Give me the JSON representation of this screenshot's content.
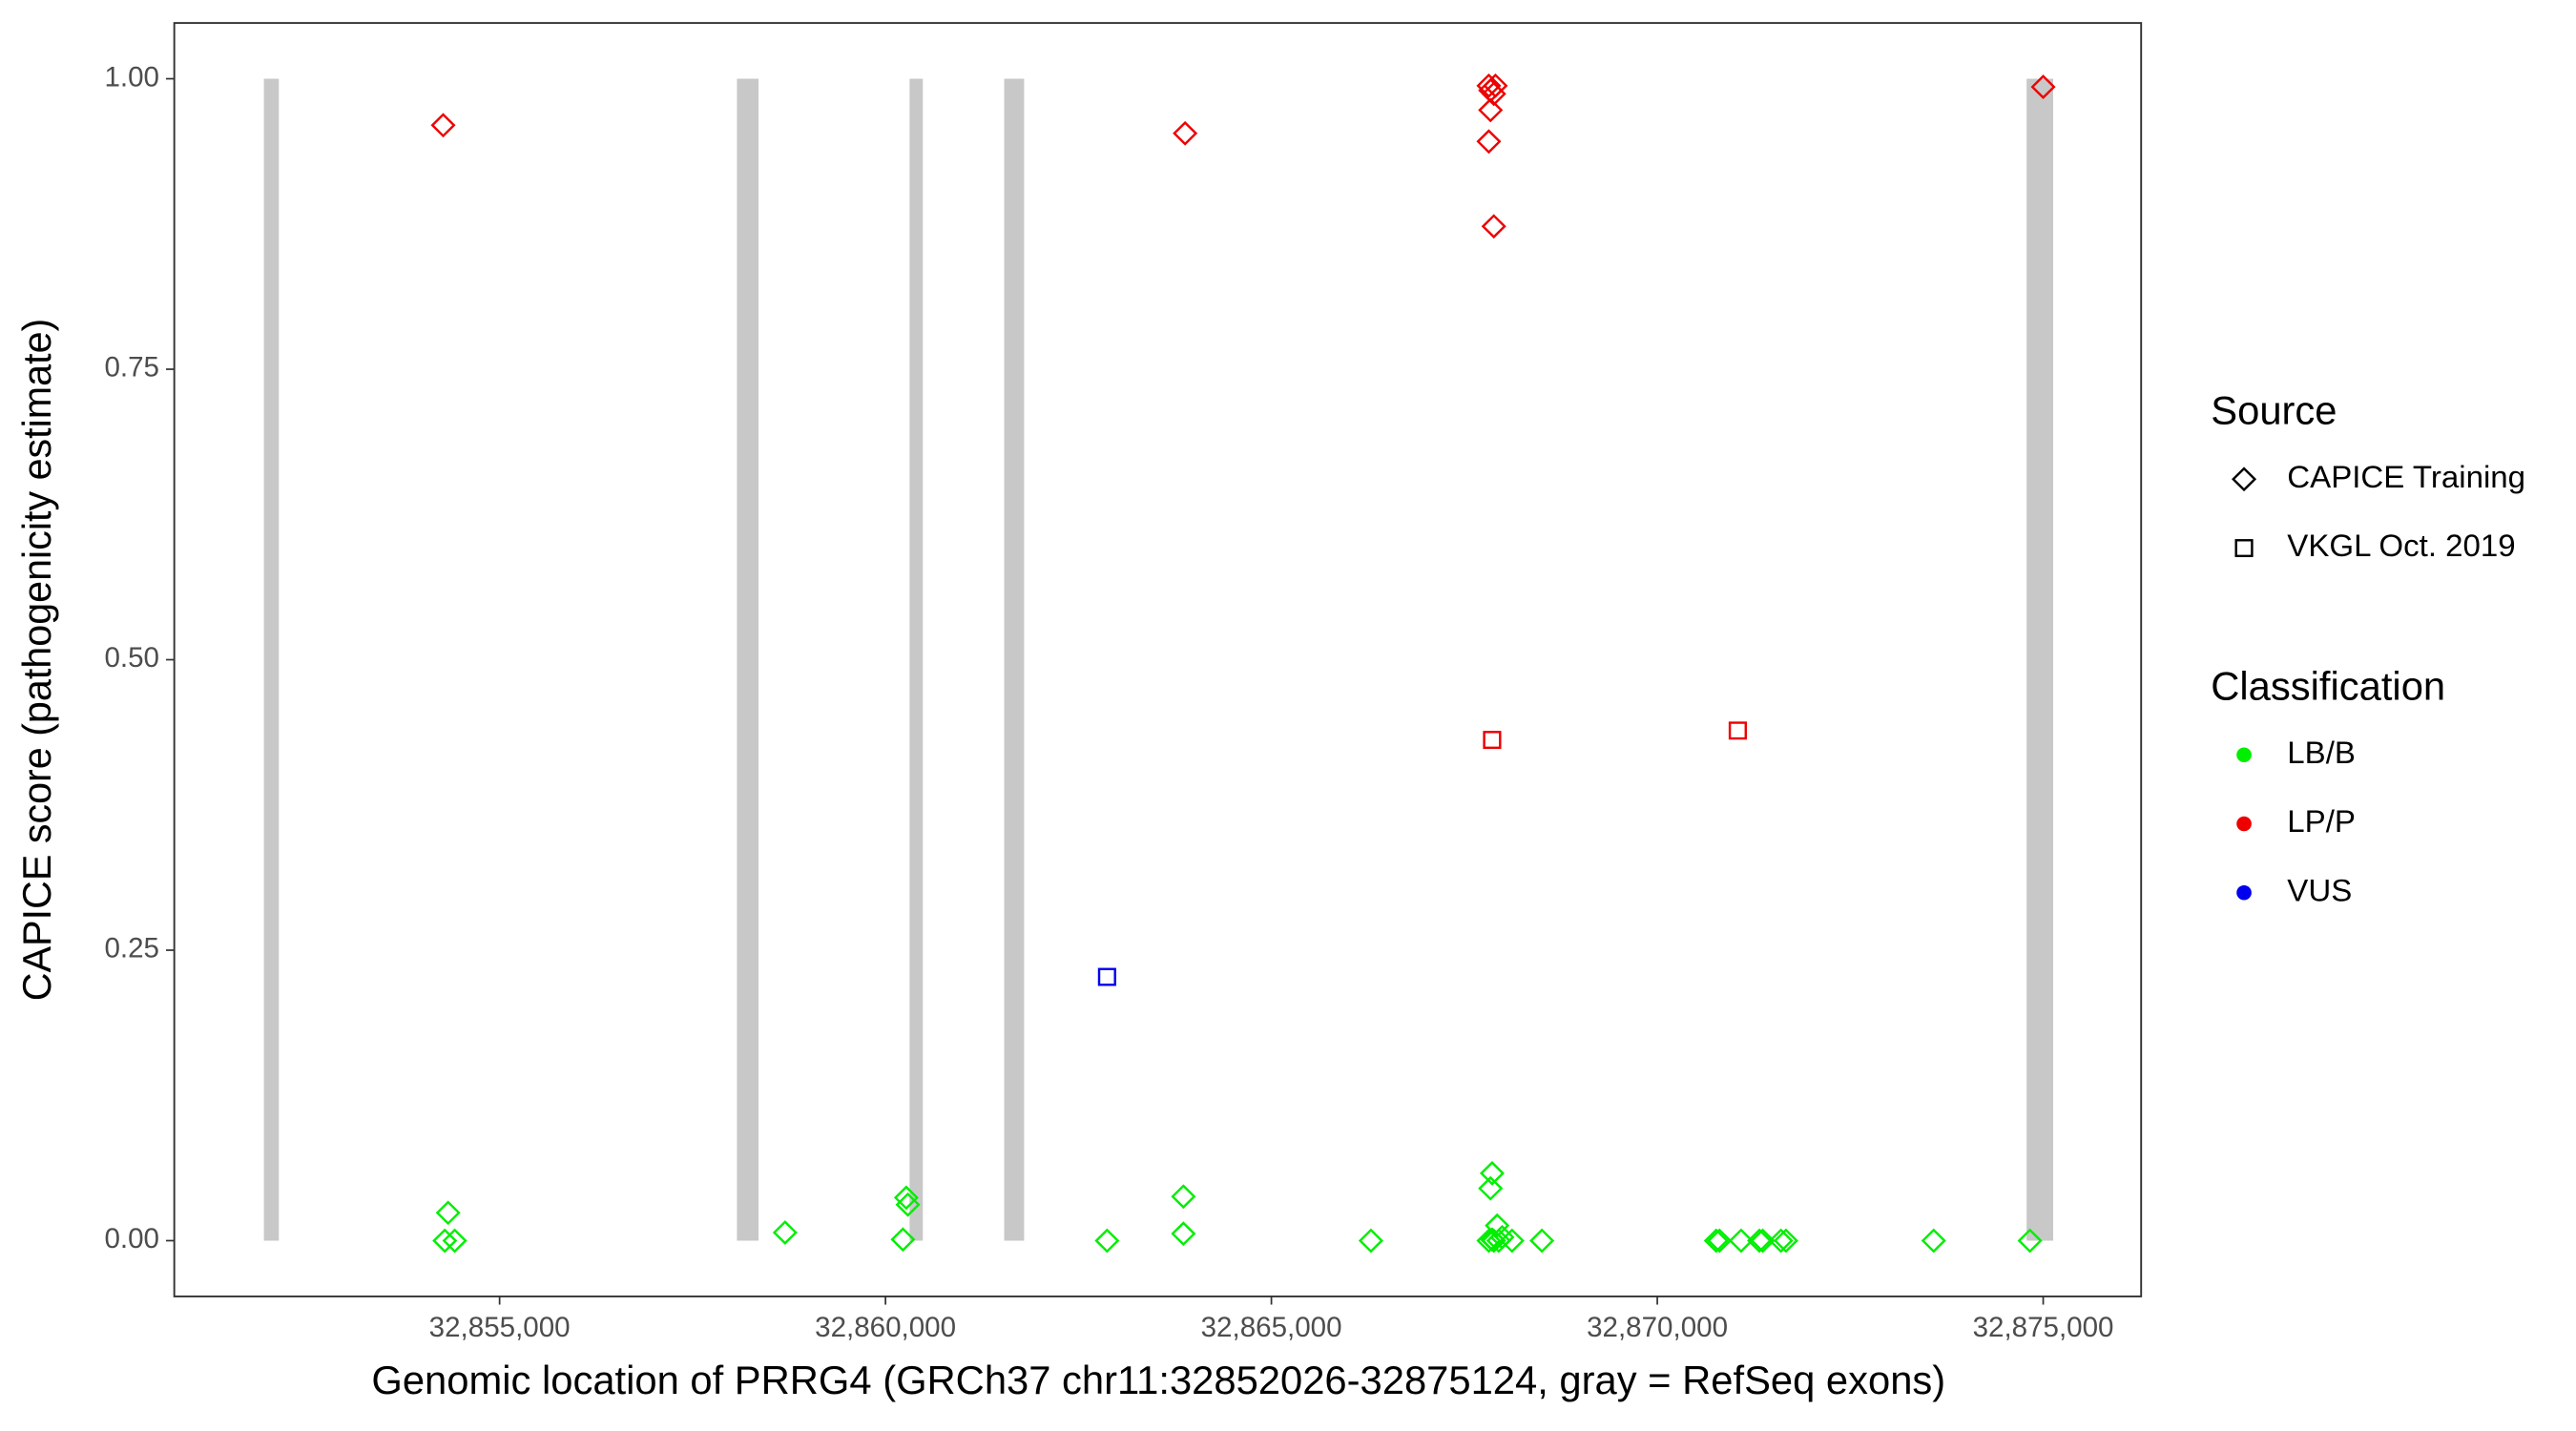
{
  "chart_data": {
    "type": "scatter",
    "x_label": "Genomic location of PRRG4 (GRCh37 chr11:32852026-32875124, gray = RefSeq exons)",
    "y_label": "CAPICE score (pathogenicity estimate)",
    "xlim": [
      32850785,
      32876269
    ],
    "ylim": [
      -0.048,
      1.048
    ],
    "xticks": [
      {
        "value": 32855000,
        "label": "32,855,000"
      },
      {
        "value": 32860000,
        "label": "32,860,000"
      },
      {
        "value": 32865000,
        "label": "32,865,000"
      },
      {
        "value": 32870000,
        "label": "32,870,000"
      },
      {
        "value": 32875000,
        "label": "32,875,000"
      }
    ],
    "yticks": [
      {
        "value": 0,
        "label": "0.00"
      },
      {
        "value": 0.25,
        "label": "0.25"
      },
      {
        "value": 0.5,
        "label": "0.50"
      },
      {
        "value": 0.75,
        "label": "0.75"
      },
      {
        "value": 1,
        "label": "1.00"
      }
    ],
    "exon_color": "#c8c8c8",
    "exons": [
      {
        "start": 32851946,
        "end": 32852140
      },
      {
        "start": 32858075,
        "end": 32858355
      },
      {
        "start": 32860312,
        "end": 32860484
      },
      {
        "start": 32861538,
        "end": 32861796
      },
      {
        "start": 32874785,
        "end": 32875129
      }
    ],
    "source_legend": {
      "title": "Source",
      "items": [
        {
          "name": "CAPICE Training",
          "shape": "diamond"
        },
        {
          "name": "VKGL Oct. 2019",
          "shape": "square"
        }
      ]
    },
    "class_legend": {
      "title": "Classification",
      "items": [
        {
          "name": "LB/B",
          "color": "#00ee00"
        },
        {
          "name": "LP/P",
          "color": "#ee0000"
        },
        {
          "name": "VUS",
          "color": "#0000ee"
        }
      ]
    },
    "series": [
      {
        "shape": "diamond",
        "color": "#ee0000",
        "x": [
          32854269,
          32863882,
          32867817,
          32867839,
          32867882,
          32867903,
          32867839,
          32867817,
          32867882,
          32875000
        ],
        "values": [
          0.96,
          0.953,
          0.994,
          0.99,
          0.987,
          0.994,
          0.973,
          0.946,
          0.873,
          0.993
        ]
      },
      {
        "shape": "square",
        "color": "#ee0000",
        "x": [
          32867860,
          32871043
        ],
        "values": [
          0.431,
          0.439
        ]
      },
      {
        "shape": "square",
        "color": "#0000ee",
        "x": [
          32862871
        ],
        "values": [
          0.227
        ]
      },
      {
        "shape": "diamond",
        "color": "#00ee00",
        "x": [
          32854333,
          32854290,
          32854419,
          32858699,
          32860269,
          32860290,
          32860226,
          32862871,
          32863860,
          32863860,
          32866290,
          32867860,
          32867839,
          32867925,
          32867817,
          32867882,
          32867946,
          32867989,
          32867860,
          32868118,
          32868505,
          32870763,
          32870806,
          32871086,
          32871323,
          32871366,
          32871602,
          32871667,
          32873581,
          32874828
        ],
        "values": [
          0.024,
          0,
          0,
          0.007,
          0.037,
          0.031,
          0.001,
          0,
          0.038,
          0.006,
          0,
          0.058,
          0.045,
          0.013,
          0,
          0,
          0,
          0.003,
          0.001,
          0,
          0,
          0,
          0,
          0,
          0,
          0,
          0,
          0,
          0,
          0
        ]
      }
    ]
  }
}
